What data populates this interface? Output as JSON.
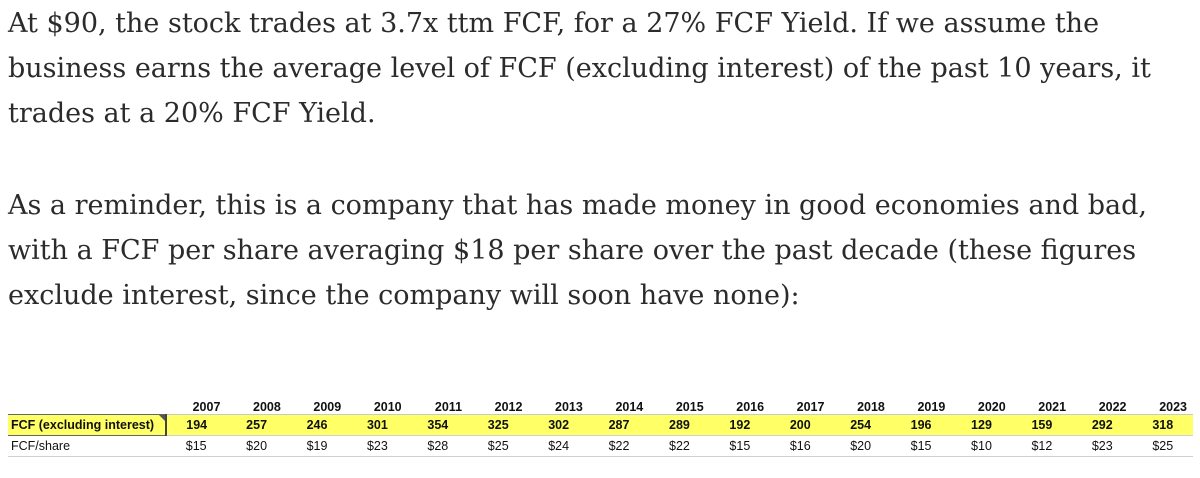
{
  "article": {
    "paragraph1": "At $90, the stock trades at 3.7x ttm FCF, for a 27% FCF Yield. If we assume the business earns the average level of FCF (excluding interest) of the past 10 years, it trades at a 20% FCF Yield.",
    "paragraph2": "As a reminder, this is a company that has made money in good economies and bad, with a FCF per share averaging $18 per share over the past decade (these figures exclude interest, since the company will soon have none):"
  },
  "table": {
    "years": [
      "2007",
      "2008",
      "2009",
      "2010",
      "2011",
      "2012",
      "2013",
      "2014",
      "2015",
      "2016",
      "2017",
      "2018",
      "2019",
      "2020",
      "2021",
      "2022",
      "2023"
    ],
    "rows": [
      {
        "label": "FCF (excluding interest)",
        "highlight_color": "#ffff66",
        "values": [
          "194",
          "257",
          "246",
          "301",
          "354",
          "325",
          "302",
          "287",
          "289",
          "192",
          "200",
          "254",
          "196",
          "129",
          "159",
          "292",
          "318"
        ]
      },
      {
        "label": "FCF/share",
        "values": [
          "$15",
          "$20",
          "$19",
          "$23",
          "$28",
          "$25",
          "$24",
          "$22",
          "$22",
          "$15",
          "$16",
          "$20",
          "$15",
          "$10",
          "$12",
          "$23",
          "$25"
        ]
      }
    ]
  }
}
